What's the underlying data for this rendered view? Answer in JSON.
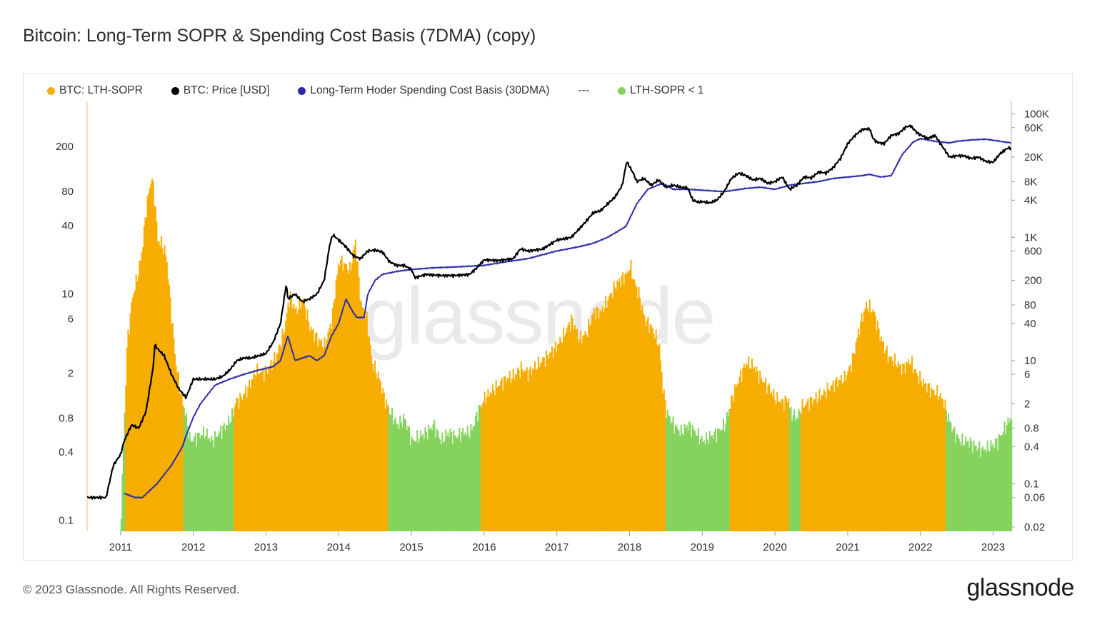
{
  "header": {
    "title": "Bitcoin: Long-Term SOPR & Spending Cost Basis (7DMA) (copy)"
  },
  "legend": [
    {
      "label": "BTC: LTH-SOPR",
      "color": "#f7ad00",
      "kind": "dot"
    },
    {
      "label": "BTC: Price [USD]",
      "color": "#000000",
      "kind": "dot"
    },
    {
      "label": "Long-Term Hoder Spending Cost Basis (30DMA)",
      "color": "#2c2ca8",
      "kind": "dot"
    },
    {
      "label": "---",
      "color": "",
      "kind": "text"
    },
    {
      "label": "LTH-SOPR < 1",
      "color": "#85d35d",
      "kind": "dot"
    }
  ],
  "footer": {
    "copyright": "© 2023 Glassnode. All Rights Reserved.",
    "brand": "glassnode"
  },
  "watermark": "glassnode",
  "colors": {
    "sopr_above": "#f7ad00",
    "sopr_below": "#85d35d",
    "price": "#000000",
    "cost_basis": "#2c2ca8",
    "axis_text": "#333333",
    "grid": "#ececec"
  },
  "chart_data": {
    "type": "area",
    "title": "Bitcoin: Long-Term SOPR & Spending Cost Basis (7DMA) (copy)",
    "x_ticks": [
      "2011",
      "2012",
      "2013",
      "2014",
      "2015",
      "2016",
      "2017",
      "2018",
      "2019",
      "2020",
      "2021",
      "2022",
      "2023"
    ],
    "x_range": [
      2010.54,
      2023.25
    ],
    "left_axis": {
      "scale": "log",
      "range": [
        0.08,
        500
      ],
      "ticks": [
        "0.1",
        "0.4",
        "0.8",
        "2",
        "6",
        "10",
        "40",
        "80",
        "200"
      ]
    },
    "right_axis": {
      "scale": "log",
      "range": [
        0.017,
        160000
      ],
      "ticks": [
        "0.02",
        "0.06",
        "0.1",
        "0.4",
        "0.8",
        "2",
        "6",
        "10",
        "40",
        "80",
        "200",
        "600",
        "1K",
        "4K",
        "8K",
        "20K",
        "60K",
        "100K"
      ]
    },
    "series": [
      {
        "name": "BTC: LTH-SOPR",
        "axis": "left",
        "threshold": 1,
        "x": [
          2011.0,
          2011.08,
          2011.15,
          2011.22,
          2011.28,
          2011.35,
          2011.42,
          2011.47,
          2011.5,
          2011.55,
          2011.62,
          2011.68,
          2011.75,
          2011.82,
          2011.88,
          2011.95,
          2012.05,
          2012.15,
          2012.25,
          2012.35,
          2012.45,
          2012.55,
          2012.56,
          2012.65,
          2012.75,
          2012.85,
          2012.95,
          2013.05,
          2013.15,
          2013.25,
          2013.32,
          2013.4,
          2013.5,
          2013.6,
          2013.7,
          2013.8,
          2013.9,
          2013.95,
          2014.0,
          2014.08,
          2014.15,
          2014.22,
          2014.3,
          2014.38,
          2014.45,
          2014.55,
          2014.62,
          2014.7,
          2014.8,
          2014.9,
          2015.0,
          2015.1,
          2015.2,
          2015.3,
          2015.4,
          2015.5,
          2015.6,
          2015.7,
          2015.8,
          2015.85,
          2015.9,
          2016.0,
          2016.1,
          2016.2,
          2016.3,
          2016.4,
          2016.5,
          2016.6,
          2016.7,
          2016.8,
          2016.9,
          2017.0,
          2017.1,
          2017.2,
          2017.3,
          2017.4,
          2017.5,
          2017.6,
          2017.7,
          2017.8,
          2017.9,
          2017.96,
          2018.0,
          2018.05,
          2018.12,
          2018.2,
          2018.3,
          2018.4,
          2018.45,
          2018.5,
          2018.6,
          2018.7,
          2018.8,
          2018.9,
          2019.0,
          2019.1,
          2019.2,
          2019.3,
          2019.35,
          2019.4,
          2019.5,
          2019.6,
          2019.7,
          2019.8,
          2019.9,
          2020.0,
          2020.1,
          2020.18,
          2020.2,
          2020.3,
          2020.35,
          2020.45,
          2020.55,
          2020.65,
          2020.75,
          2020.85,
          2020.95,
          2021.0,
          2021.05,
          2021.1,
          2021.15,
          2021.2,
          2021.25,
          2021.35,
          2021.45,
          2021.55,
          2021.65,
          2021.75,
          2021.85,
          2021.95,
          2022.05,
          2022.15,
          2022.25,
          2022.32,
          2022.35,
          2022.45,
          2022.55,
          2022.65,
          2022.75,
          2022.85,
          2022.95,
          2023.05,
          2023.15,
          2023.25
        ],
        "values": [
          0.12,
          3.5,
          9,
          14,
          22,
          60,
          110,
          60,
          30,
          28,
          22,
          8,
          2.5,
          1.3,
          0.9,
          0.5,
          0.55,
          0.6,
          0.5,
          0.6,
          0.7,
          0.9,
          1.1,
          1.2,
          1.5,
          2.1,
          2.0,
          2.3,
          3.0,
          5,
          10,
          7,
          9,
          5,
          4,
          3.5,
          6,
          12,
          20,
          18,
          16,
          30,
          8,
          6,
          2.5,
          1.8,
          1.2,
          0.9,
          0.7,
          0.8,
          0.5,
          0.55,
          0.6,
          0.7,
          0.5,
          0.6,
          0.55,
          0.6,
          0.6,
          0.7,
          0.9,
          1.2,
          1.4,
          1.6,
          1.8,
          1.9,
          2.2,
          2.0,
          2.3,
          2.6,
          3.0,
          3.5,
          4.5,
          6,
          4,
          4.5,
          7,
          7,
          9,
          12,
          14,
          15,
          18,
          13,
          10,
          6,
          5,
          3.5,
          1.5,
          0.9,
          0.7,
          0.6,
          0.7,
          0.6,
          0.5,
          0.55,
          0.6,
          0.7,
          0.9,
          1.2,
          1.8,
          2.5,
          2.3,
          1.8,
          1.5,
          1.2,
          1.1,
          1.2,
          0.9,
          0.8,
          1.0,
          1.1,
          1.2,
          1.3,
          1.5,
          1.7,
          1.8,
          2.1,
          2.5,
          3.5,
          5,
          6.5,
          8,
          7,
          4,
          2.8,
          2.5,
          2.2,
          2.6,
          1.9,
          1.6,
          1.4,
          1.3,
          1.1,
          0.9,
          0.6,
          0.5,
          0.5,
          0.45,
          0.42,
          0.45,
          0.5,
          0.65,
          0.85
        ]
      },
      {
        "name": "BTC: Price [USD]",
        "axis": "right",
        "x": [
          2010.54,
          2010.6,
          2010.7,
          2010.8,
          2010.9,
          2011.0,
          2011.05,
          2011.15,
          2011.25,
          2011.35,
          2011.45,
          2011.47,
          2011.52,
          2011.6,
          2011.7,
          2011.8,
          2011.9,
          2012.0,
          2012.1,
          2012.2,
          2012.3,
          2012.4,
          2012.5,
          2012.6,
          2012.7,
          2012.8,
          2012.9,
          2013.0,
          2013.1,
          2013.2,
          2013.28,
          2013.3,
          2013.4,
          2013.5,
          2013.6,
          2013.7,
          2013.8,
          2013.88,
          2013.92,
          2014.0,
          2014.1,
          2014.2,
          2014.3,
          2014.4,
          2014.5,
          2014.6,
          2014.7,
          2014.8,
          2014.9,
          2015.0,
          2015.05,
          2015.2,
          2015.4,
          2015.6,
          2015.8,
          2015.9,
          2016.0,
          2016.2,
          2016.4,
          2016.5,
          2016.6,
          2016.8,
          2017.0,
          2017.2,
          2017.4,
          2017.5,
          2017.6,
          2017.8,
          2017.9,
          2017.96,
          2018.05,
          2018.1,
          2018.2,
          2018.3,
          2018.4,
          2018.5,
          2018.6,
          2018.7,
          2018.8,
          2018.87,
          2018.95,
          2019.0,
          2019.1,
          2019.2,
          2019.3,
          2019.4,
          2019.5,
          2019.6,
          2019.7,
          2019.8,
          2019.9,
          2020.0,
          2020.1,
          2020.2,
          2020.3,
          2020.4,
          2020.5,
          2020.6,
          2020.7,
          2020.8,
          2020.9,
          2021.0,
          2021.1,
          2021.2,
          2021.3,
          2021.35,
          2021.4,
          2021.5,
          2021.6,
          2021.7,
          2021.8,
          2021.87,
          2021.95,
          2022.0,
          2022.1,
          2022.2,
          2022.3,
          2022.4,
          2022.5,
          2022.6,
          2022.7,
          2022.8,
          2022.9,
          2023.0,
          2023.1,
          2023.2,
          2023.25
        ],
        "values": [
          0.06,
          0.06,
          0.06,
          0.06,
          0.2,
          0.3,
          0.5,
          0.9,
          0.8,
          1.5,
          8,
          18,
          15,
          12,
          6,
          3.5,
          2.5,
          5,
          5,
          5,
          5,
          5.5,
          7,
          10,
          11,
          11,
          12,
          13,
          20,
          40,
          180,
          100,
          120,
          90,
          100,
          120,
          200,
          800,
          1100,
          900,
          700,
          500,
          450,
          600,
          620,
          580,
          400,
          350,
          350,
          300,
          220,
          250,
          240,
          240,
          250,
          320,
          430,
          420,
          450,
          650,
          600,
          640,
          900,
          1000,
          1800,
          2500,
          2700,
          4500,
          7000,
          17000,
          11000,
          8000,
          9000,
          7000,
          8500,
          6500,
          7000,
          6500,
          6300,
          4000,
          3700,
          3800,
          3600,
          4000,
          5500,
          9000,
          11000,
          10000,
          8500,
          9000,
          7500,
          8000,
          9500,
          6000,
          7000,
          9500,
          9200,
          11500,
          11000,
          13500,
          19000,
          33000,
          45000,
          56000,
          58000,
          40000,
          35000,
          33000,
          45000,
          48000,
          62000,
          64000,
          50000,
          46000,
          40000,
          45000,
          30000,
          20000,
          21000,
          21000,
          19000,
          20000,
          17000,
          16500,
          23000,
          28000,
          28000
        ],
        "color": "#000000"
      },
      {
        "name": "Long-Term Hoder Spending Cost Basis (30DMA)",
        "axis": "right",
        "x": [
          2011.05,
          2011.2,
          2011.3,
          2011.5,
          2011.7,
          2011.85,
          2011.9,
          2012.0,
          2012.1,
          2012.3,
          2012.5,
          2012.7,
          2012.9,
          2013.1,
          2013.2,
          2013.3,
          2013.4,
          2013.5,
          2013.6,
          2013.7,
          2013.8,
          2013.9,
          2014.0,
          2014.1,
          2014.2,
          2014.25,
          2014.35,
          2014.4,
          2014.5,
          2014.6,
          2014.8,
          2015.0,
          2015.3,
          2015.6,
          2016.0,
          2016.3,
          2016.6,
          2017.0,
          2017.3,
          2017.5,
          2017.7,
          2017.95,
          2018.1,
          2018.25,
          2018.45,
          2018.5,
          2018.6,
          2018.8,
          2019.0,
          2019.3,
          2019.6,
          2019.8,
          2020.0,
          2020.2,
          2020.4,
          2020.6,
          2020.8,
          2021.0,
          2021.2,
          2021.3,
          2021.45,
          2021.6,
          2021.75,
          2021.9,
          2022.0,
          2022.2,
          2022.4,
          2022.5,
          2022.7,
          2022.9,
          2023.1,
          2023.25
        ],
        "values": [
          0.07,
          0.06,
          0.06,
          0.1,
          0.2,
          0.4,
          0.6,
          1.2,
          2.0,
          4,
          5,
          6,
          7,
          8,
          10,
          25,
          10,
          11,
          12,
          10,
          12,
          25,
          40,
          100,
          60,
          50,
          50,
          120,
          200,
          250,
          280,
          300,
          320,
          330,
          350,
          400,
          450,
          600,
          700,
          800,
          1000,
          1500,
          3500,
          6000,
          7500,
          7000,
          6000,
          6000,
          5800,
          5500,
          6200,
          6500,
          6000,
          7000,
          7500,
          8000,
          9000,
          9500,
          10000,
          10500,
          9500,
          10000,
          22000,
          35000,
          40000,
          36000,
          34000,
          36000,
          38000,
          39000,
          36000,
          34000
        ],
        "color": "#2c2ca8"
      }
    ]
  }
}
